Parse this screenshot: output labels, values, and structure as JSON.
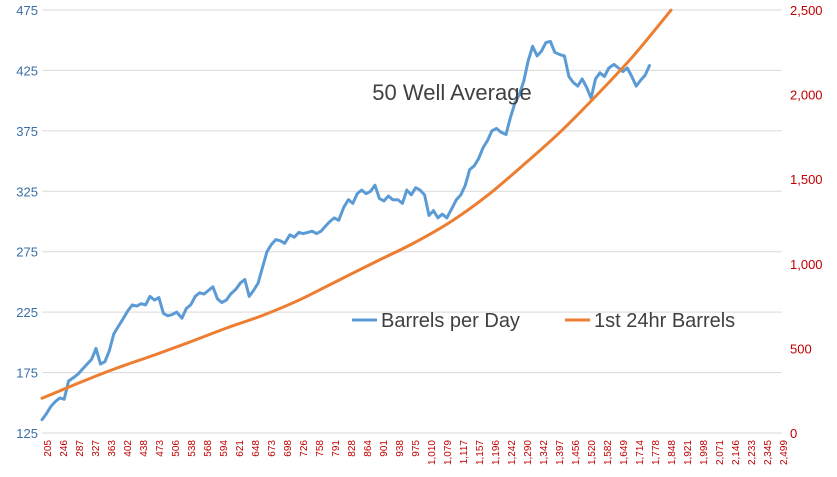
{
  "chart_data": {
    "type": "line",
    "title": "50 Well Average",
    "xlabel": "",
    "ylabel": "",
    "y_left": {
      "ticks": [
        "125",
        "175",
        "225",
        "275",
        "325",
        "375",
        "425",
        "475"
      ],
      "lim": [
        125,
        475
      ]
    },
    "y_right": {
      "ticks": [
        "0",
        "500",
        "1,000",
        "1,500",
        "2,000",
        "2,500"
      ],
      "lim": [
        0,
        2500
      ]
    },
    "grid": true,
    "legend_position": "center-right",
    "x_tick_labels": [
      "205",
      "246",
      "287",
      "327",
      "363",
      "402",
      "438",
      "473",
      "506",
      "538",
      "568",
      "594",
      "621",
      "648",
      "673",
      "698",
      "726",
      "758",
      "791",
      "828",
      "864",
      "901",
      "938",
      "975",
      "1,010",
      "1,079",
      "1,117",
      "1,157",
      "1,196",
      "1,242",
      "1,290",
      "1,342",
      "1,397",
      "1,456",
      "1,520",
      "1,582",
      "1,649",
      "1,714",
      "1,778",
      "1,848",
      "1,921",
      "1,998",
      "2,071",
      "2,146",
      "2,233",
      "2,345",
      "2,499"
    ],
    "series": [
      {
        "name": "Barrels per Day",
        "axis": "left",
        "color": "#5b9bd5",
        "points": [
          [
            0,
            136
          ],
          [
            0.006,
            141
          ],
          [
            0.012,
            147
          ],
          [
            0.018,
            151
          ],
          [
            0.024,
            154
          ],
          [
            0.03,
            153
          ],
          [
            0.036,
            168
          ],
          [
            0.043,
            171
          ],
          [
            0.049,
            174
          ],
          [
            0.055,
            178
          ],
          [
            0.061,
            182
          ],
          [
            0.067,
            186
          ],
          [
            0.073,
            195
          ],
          [
            0.079,
            182
          ],
          [
            0.085,
            184
          ],
          [
            0.091,
            193
          ],
          [
            0.097,
            207
          ],
          [
            0.103,
            213
          ],
          [
            0.109,
            219
          ],
          [
            0.116,
            226
          ],
          [
            0.122,
            231
          ],
          [
            0.128,
            230
          ],
          [
            0.134,
            232
          ],
          [
            0.14,
            231
          ],
          [
            0.146,
            238
          ],
          [
            0.152,
            235
          ],
          [
            0.158,
            237
          ],
          [
            0.164,
            224
          ],
          [
            0.17,
            222
          ],
          [
            0.176,
            223
          ],
          [
            0.182,
            225
          ],
          [
            0.189,
            220
          ],
          [
            0.195,
            228
          ],
          [
            0.201,
            231
          ],
          [
            0.207,
            238
          ],
          [
            0.213,
            241
          ],
          [
            0.219,
            240
          ],
          [
            0.225,
            243
          ],
          [
            0.231,
            246
          ],
          [
            0.237,
            236
          ],
          [
            0.243,
            233
          ],
          [
            0.249,
            235
          ],
          [
            0.255,
            240
          ],
          [
            0.262,
            244
          ],
          [
            0.268,
            249
          ],
          [
            0.274,
            252
          ],
          [
            0.28,
            238
          ],
          [
            0.286,
            243
          ],
          [
            0.292,
            249
          ],
          [
            0.298,
            262
          ],
          [
            0.304,
            275
          ],
          [
            0.31,
            281
          ],
          [
            0.316,
            285
          ],
          [
            0.322,
            284
          ],
          [
            0.328,
            282
          ],
          [
            0.335,
            289
          ],
          [
            0.341,
            287
          ],
          [
            0.347,
            291
          ],
          [
            0.353,
            290
          ],
          [
            0.359,
            291
          ],
          [
            0.365,
            292
          ],
          [
            0.371,
            290
          ],
          [
            0.377,
            292
          ],
          [
            0.383,
            296
          ],
          [
            0.389,
            300
          ],
          [
            0.395,
            303
          ],
          [
            0.401,
            301
          ],
          [
            0.408,
            312
          ],
          [
            0.414,
            318
          ],
          [
            0.42,
            315
          ],
          [
            0.426,
            323
          ],
          [
            0.432,
            326
          ],
          [
            0.438,
            323
          ],
          [
            0.444,
            325
          ],
          [
            0.45,
            330
          ],
          [
            0.456,
            319
          ],
          [
            0.462,
            317
          ],
          [
            0.468,
            321
          ],
          [
            0.474,
            318
          ],
          [
            0.481,
            318
          ],
          [
            0.487,
            315
          ],
          [
            0.493,
            326
          ],
          [
            0.499,
            322
          ],
          [
            0.505,
            328
          ],
          [
            0.511,
            326
          ],
          [
            0.517,
            322
          ],
          [
            0.523,
            305
          ],
          [
            0.529,
            309
          ],
          [
            0.535,
            303
          ],
          [
            0.541,
            306
          ],
          [
            0.547,
            303
          ],
          [
            0.554,
            311
          ],
          [
            0.56,
            318
          ],
          [
            0.566,
            322
          ],
          [
            0.572,
            330
          ],
          [
            0.578,
            343
          ],
          [
            0.584,
            346
          ],
          [
            0.59,
            352
          ],
          [
            0.596,
            361
          ],
          [
            0.602,
            367
          ],
          [
            0.608,
            375
          ],
          [
            0.614,
            377
          ],
          [
            0.62,
            374
          ],
          [
            0.627,
            372
          ],
          [
            0.633,
            386
          ],
          [
            0.639,
            398
          ],
          [
            0.645,
            405
          ],
          [
            0.651,
            416
          ],
          [
            0.657,
            433
          ],
          [
            0.663,
            445
          ],
          [
            0.669,
            437
          ],
          [
            0.675,
            441
          ],
          [
            0.681,
            448
          ],
          [
            0.687,
            449
          ],
          [
            0.693,
            440
          ],
          [
            0.7,
            438
          ],
          [
            0.706,
            437
          ],
          [
            0.712,
            420
          ],
          [
            0.718,
            415
          ],
          [
            0.724,
            412
          ],
          [
            0.73,
            418
          ],
          [
            0.736,
            411
          ],
          [
            0.742,
            402
          ],
          [
            0.748,
            418
          ],
          [
            0.754,
            423
          ],
          [
            0.76,
            420
          ],
          [
            0.766,
            427
          ],
          [
            0.773,
            430
          ],
          [
            0.779,
            427
          ],
          [
            0.785,
            424
          ],
          [
            0.791,
            427
          ],
          [
            0.797,
            420
          ],
          [
            0.803,
            412
          ],
          [
            0.809,
            417
          ],
          [
            0.815,
            421
          ],
          [
            0.821,
            429
          ]
        ]
      },
      {
        "name": "1st 24hr Barrels",
        "axis": "right",
        "color": "#ed7d31",
        "points": [
          [
            0,
            205
          ],
          [
            0.05,
            296
          ],
          [
            0.1,
            382
          ],
          [
            0.15,
            458
          ],
          [
            0.2,
            538
          ],
          [
            0.25,
            621
          ],
          [
            0.3,
            698
          ],
          [
            0.35,
            791
          ],
          [
            0.4,
            901
          ],
          [
            0.45,
            1010
          ],
          [
            0.5,
            1117
          ],
          [
            0.55,
            1242
          ],
          [
            0.6,
            1397
          ],
          [
            0.65,
            1582
          ],
          [
            0.7,
            1778
          ],
          [
            0.75,
            1998
          ],
          [
            0.8,
            2233
          ],
          [
            0.85,
            2499
          ]
        ]
      }
    ]
  }
}
